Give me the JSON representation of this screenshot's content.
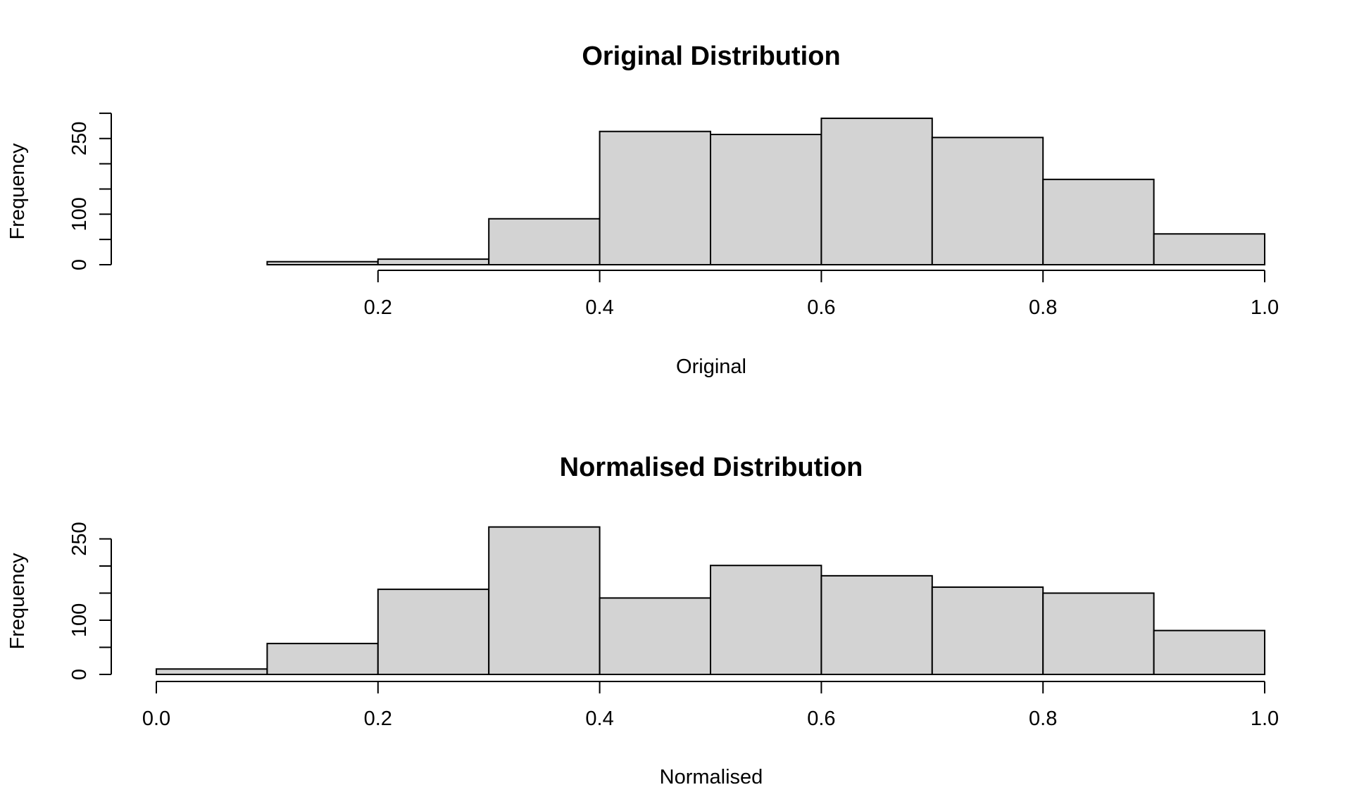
{
  "chart_data": [
    {
      "type": "bar",
      "title": "Original Distribution",
      "xlabel": "Original",
      "ylabel": "Frequency",
      "bin_edges": [
        0.1,
        0.2,
        0.3,
        0.4,
        0.5,
        0.6,
        0.7,
        0.8,
        0.9,
        1.0
      ],
      "values": [
        6,
        11,
        91,
        264,
        258,
        290,
        252,
        169,
        61
      ],
      "xticks": [
        0.2,
        0.4,
        0.6,
        0.8,
        1.0
      ],
      "xtick_labels": [
        "0.2",
        "0.4",
        "0.6",
        "0.8",
        "1.0"
      ],
      "yticks": [
        0,
        50,
        100,
        150,
        200,
        250,
        300
      ],
      "ytick_labels": [
        "0",
        "",
        "100",
        "",
        "",
        "250",
        ""
      ],
      "xlim": [
        0.1,
        1.0
      ],
      "ylim": [
        0,
        300
      ],
      "bar_color": "#d3d3d3",
      "grid": false,
      "legend": "none"
    },
    {
      "type": "bar",
      "title": "Normalised Distribution",
      "xlabel": "Normalised",
      "ylabel": "Frequency",
      "bin_edges": [
        0.0,
        0.1,
        0.2,
        0.3,
        0.4,
        0.5,
        0.6,
        0.7,
        0.8,
        0.9,
        1.0
      ],
      "values": [
        10,
        57,
        157,
        272,
        141,
        201,
        182,
        161,
        150,
        81
      ],
      "xticks": [
        0.0,
        0.2,
        0.4,
        0.6,
        0.8,
        1.0
      ],
      "xtick_labels": [
        "0.0",
        "0.2",
        "0.4",
        "0.6",
        "0.8",
        "1.0"
      ],
      "yticks": [
        0,
        50,
        100,
        150,
        200,
        250
      ],
      "ytick_labels": [
        "0",
        "",
        "100",
        "",
        "",
        "250"
      ],
      "xlim": [
        0.0,
        1.0
      ],
      "ylim": [
        0,
        250
      ],
      "bar_color": "#d3d3d3",
      "grid": false,
      "legend": "none"
    }
  ]
}
